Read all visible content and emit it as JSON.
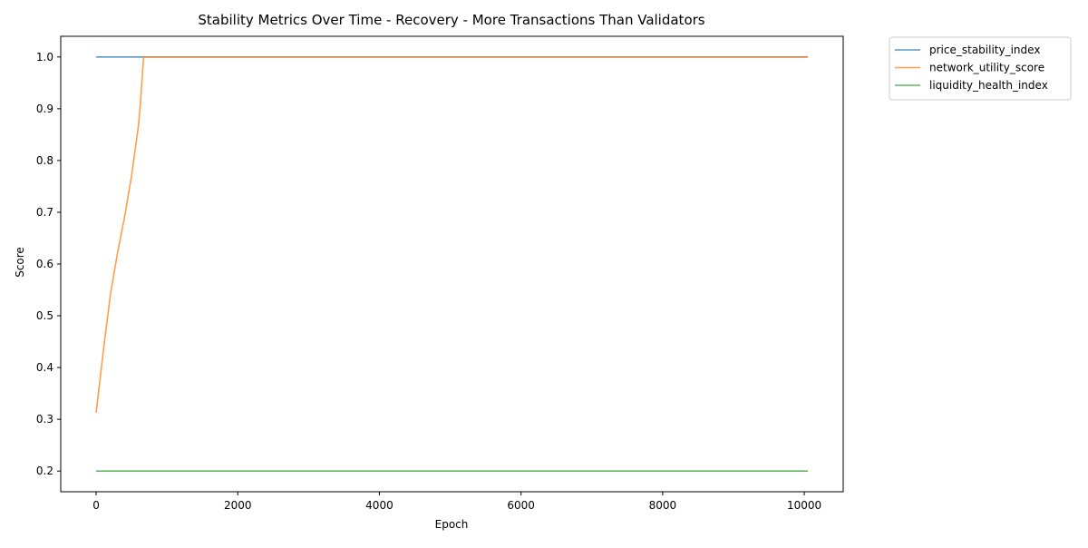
{
  "chart_data": {
    "type": "line",
    "title": "Stability Metrics Over Time - Recovery - More Transactions Than Validators",
    "xlabel": "Epoch",
    "ylabel": "Score",
    "xlim": [
      -500,
      10550
    ],
    "ylim": [
      0.16,
      1.04
    ],
    "xticks": [
      0,
      2000,
      4000,
      6000,
      8000,
      10000
    ],
    "xtick_labels": [
      "0",
      "2000",
      "4000",
      "6000",
      "8000",
      "10000"
    ],
    "yticks": [
      0.2,
      0.3,
      0.4,
      0.5,
      0.6,
      0.7,
      0.8,
      0.9,
      1.0
    ],
    "ytick_labels": [
      "0.2",
      "0.3",
      "0.4",
      "0.5",
      "0.6",
      "0.7",
      "0.8",
      "0.9",
      "1.0"
    ],
    "grid": false,
    "legend_position": "outside-top-right",
    "series": [
      {
        "name": "price_stability_index",
        "color": "#1f77b4",
        "x": [
          0,
          10050
        ],
        "y": [
          1.0,
          1.0
        ]
      },
      {
        "name": "network_utility_score",
        "color": "#ff7f0e",
        "x": [
          0,
          100,
          200,
          300,
          400,
          500,
          560,
          600,
          630,
          660,
          670,
          10050
        ],
        "y": [
          0.313,
          0.43,
          0.54,
          0.62,
          0.69,
          0.77,
          0.83,
          0.87,
          0.92,
          0.98,
          1.0,
          1.0
        ]
      },
      {
        "name": "liquidity_health_index",
        "color": "#2ca02c",
        "x": [
          0,
          10050
        ],
        "y": [
          0.2,
          0.2
        ]
      }
    ]
  }
}
